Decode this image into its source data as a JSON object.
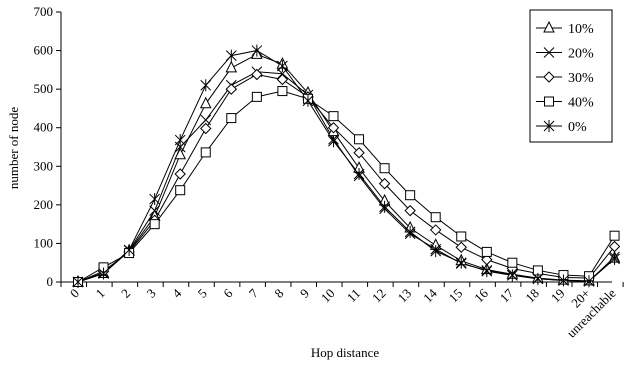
{
  "chart_data": {
    "type": "line",
    "title": "",
    "xlabel": "Hop distance",
    "ylabel": "number of node",
    "ylim": [
      0,
      700
    ],
    "yticks": [
      "0",
      "100",
      "200",
      "300",
      "400",
      "500",
      "600",
      "700"
    ],
    "categories": [
      "0",
      "1",
      "2",
      "3",
      "4",
      "5",
      "6",
      "7",
      "8",
      "9",
      "10",
      "11",
      "12",
      "13",
      "14",
      "15",
      "16",
      "17",
      "18",
      "19",
      "20+",
      "unreachable"
    ],
    "grid": false,
    "legend_position": "top-right",
    "series": [
      {
        "name": "10%",
        "marker": "triangle",
        "values": [
          0,
          22,
          80,
          170,
          330,
          462,
          555,
          590,
          565,
          490,
          390,
          295,
          210,
          140,
          95,
          55,
          32,
          20,
          10,
          5,
          3,
          62
        ]
      },
      {
        "name": "20%",
        "marker": "x",
        "values": [
          0,
          24,
          82,
          185,
          350,
          420,
          510,
          545,
          540,
          485,
          370,
          275,
          190,
          125,
          85,
          48,
          30,
          18,
          9,
          4,
          2,
          65
        ]
      },
      {
        "name": "30%",
        "marker": "diamond",
        "values": [
          0,
          28,
          78,
          160,
          280,
          398,
          500,
          538,
          525,
          480,
          400,
          335,
          255,
          185,
          135,
          90,
          58,
          35,
          22,
          12,
          10,
          92
        ]
      },
      {
        "name": "40%",
        "marker": "square",
        "values": [
          0,
          38,
          75,
          150,
          238,
          336,
          425,
          480,
          495,
          475,
          430,
          370,
          295,
          225,
          168,
          118,
          78,
          50,
          30,
          18,
          15,
          120
        ]
      },
      {
        "name": "0%",
        "marker": "asterisk",
        "values": [
          0,
          22,
          83,
          215,
          368,
          510,
          587,
          600,
          560,
          470,
          365,
          280,
          195,
          130,
          80,
          50,
          28,
          17,
          8,
          4,
          2,
          60
        ]
      }
    ]
  }
}
